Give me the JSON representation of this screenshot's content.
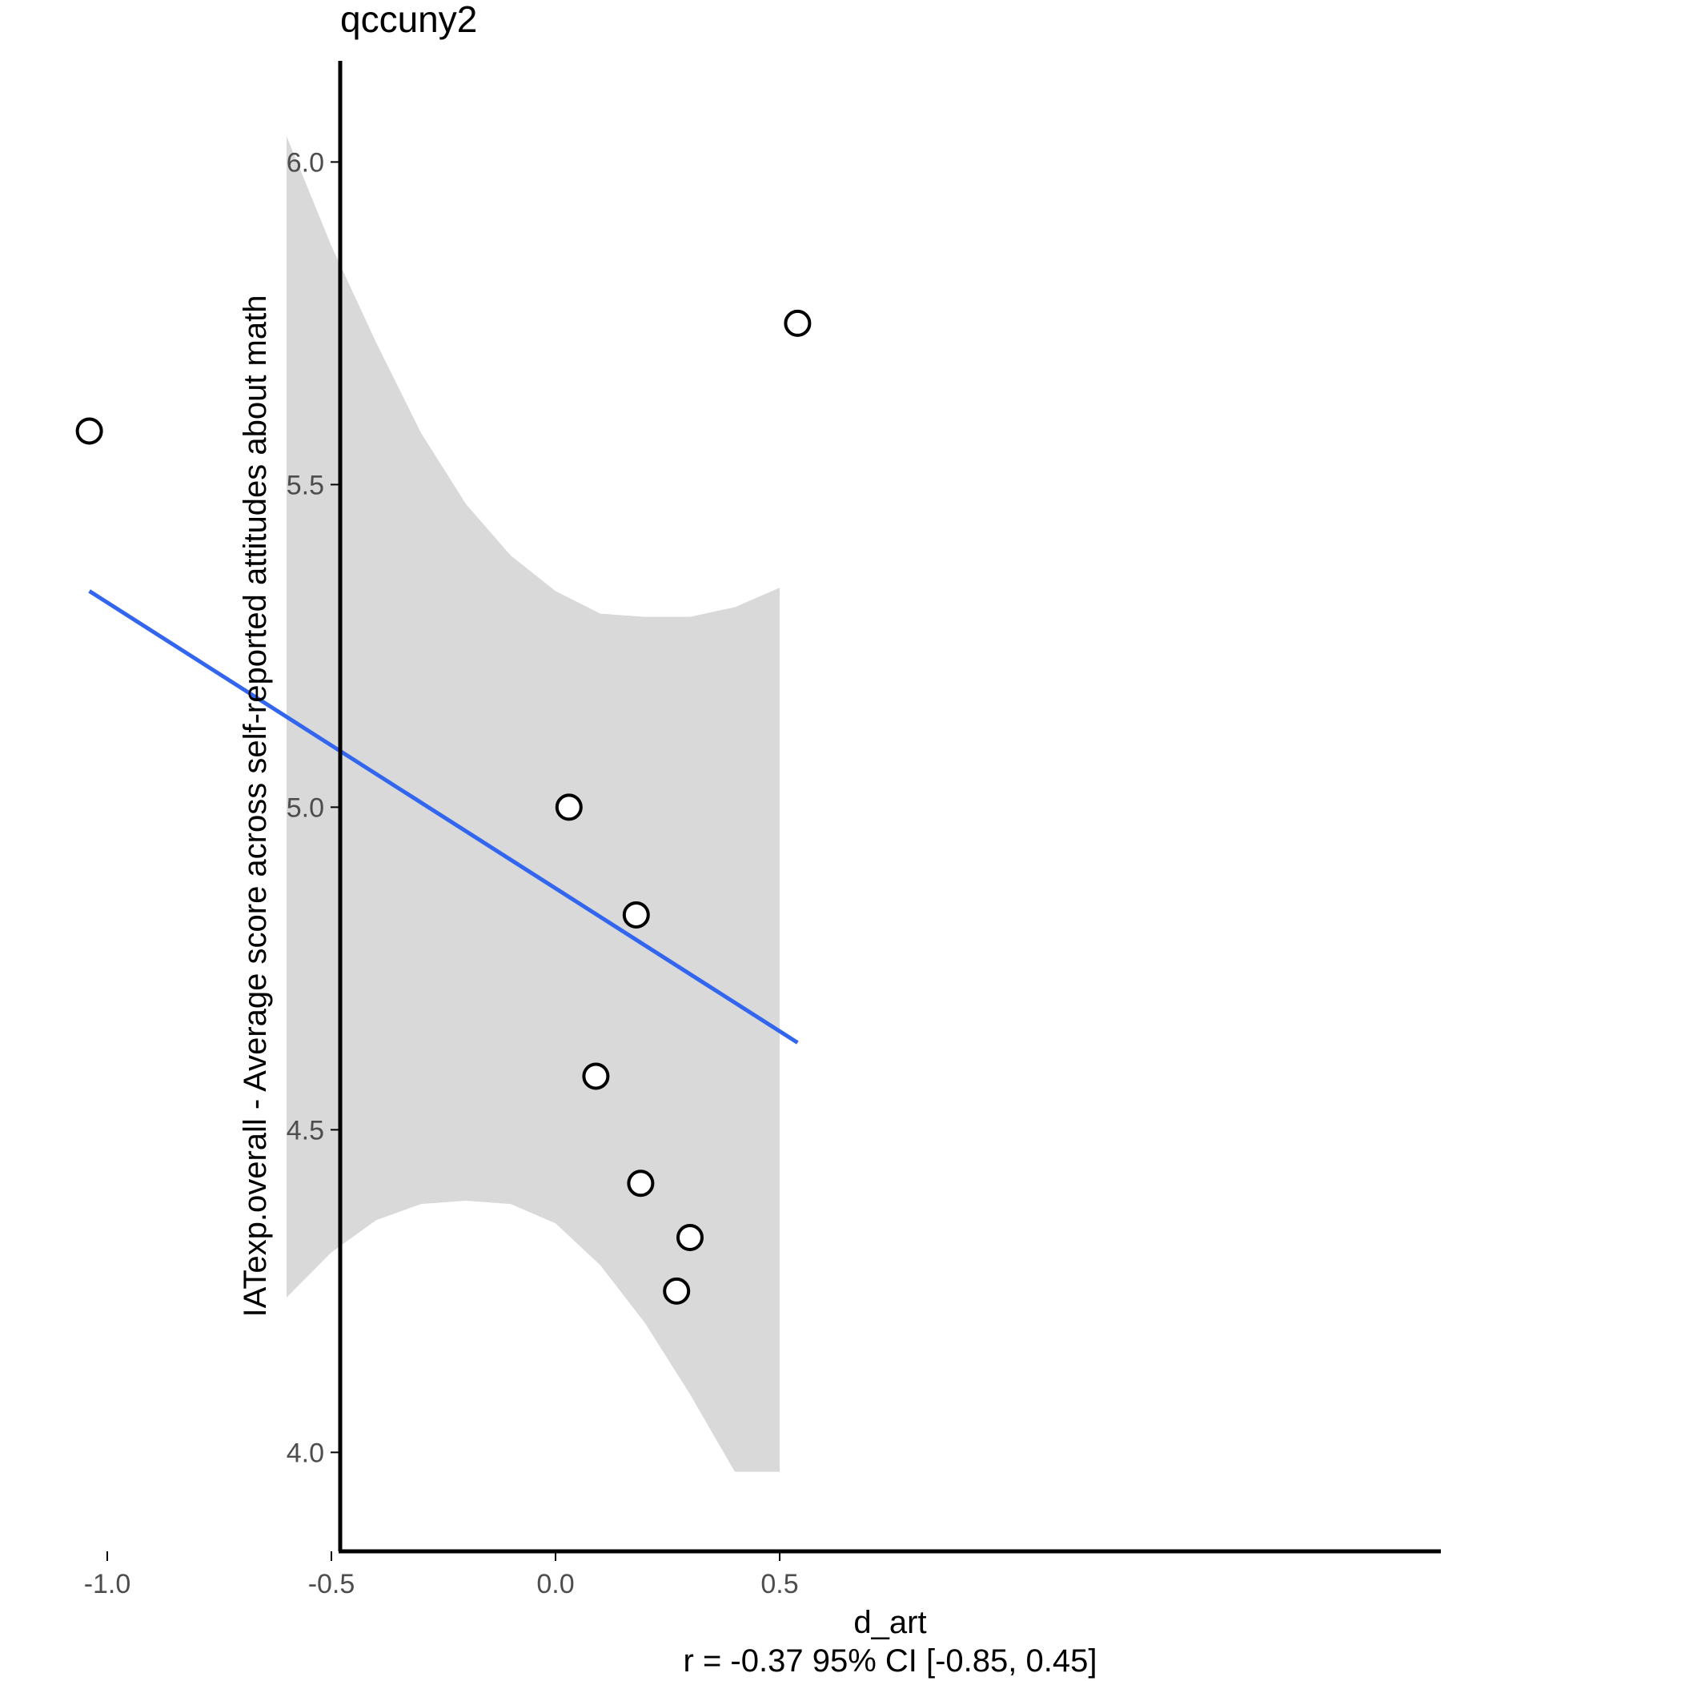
{
  "chart_data": {
    "type": "scatter",
    "title": "qccuny2",
    "xlabel": "d_art",
    "xlabel_sub": "r = -0.37 95% CI [-0.85, 0.45]",
    "ylabel": "IATexp.overall - Average score across self-reported attitudes about math",
    "xlim": [
      -1.5,
      0.95
    ],
    "ylim": [
      3.85,
      6.15
    ],
    "x_ticks": [
      -1.0,
      -0.5,
      0.0,
      0.5
    ],
    "x_tick_labels": [
      "-1.0",
      "-0.5",
      "0.0",
      "0.5"
    ],
    "y_ticks": [
      4.0,
      4.5,
      5.0,
      5.5,
      6.0
    ],
    "y_tick_labels": [
      "4.0",
      "4.5",
      "5.0",
      "5.5",
      "6.0"
    ],
    "grid": false,
    "points": [
      {
        "x": -1.04,
        "y": 5.583
      },
      {
        "x": 0.54,
        "y": 5.75
      },
      {
        "x": 0.03,
        "y": 5.0
      },
      {
        "x": 0.18,
        "y": 4.833
      },
      {
        "x": 0.09,
        "y": 4.583
      },
      {
        "x": 0.19,
        "y": 4.417
      },
      {
        "x": 0.3,
        "y": 4.333
      },
      {
        "x": 0.27,
        "y": 4.25
      }
    ],
    "fit_line": {
      "color": "#3366ee",
      "points": [
        {
          "x": -1.04,
          "y": 5.335
        },
        {
          "x": 0.54,
          "y": 4.635
        }
      ]
    },
    "ci_band": {
      "color": "#d9d9d9",
      "x": [
        -0.6,
        -0.5,
        -0.4,
        -0.3,
        -0.2,
        -0.1,
        0.0,
        0.1,
        0.2,
        0.3,
        0.4,
        0.5
      ],
      "upper": [
        6.04,
        5.87,
        5.72,
        5.58,
        5.47,
        5.39,
        5.335,
        5.3,
        5.295,
        5.295,
        5.31,
        5.34
      ],
      "lower": [
        4.24,
        4.31,
        4.36,
        4.385,
        4.39,
        4.385,
        4.355,
        4.29,
        4.2,
        4.09,
        3.97,
        3.97
      ]
    },
    "colors": {
      "point_stroke": "#000000",
      "point_fill": "#ffffff",
      "axis": "#000000",
      "tick_label": "#4d4d4d",
      "text": "#000000"
    }
  }
}
